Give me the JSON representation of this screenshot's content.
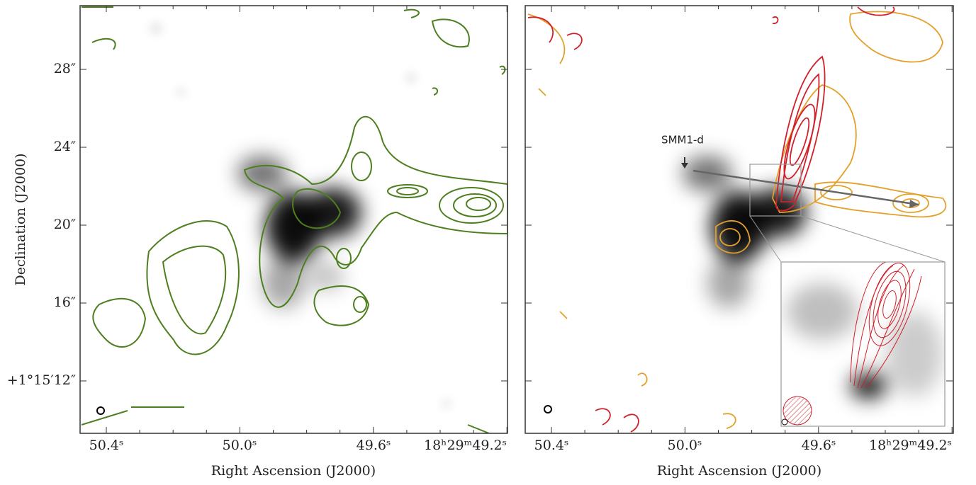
{
  "panels": [
    {
      "x_label": "Right Ascension (J2000)",
      "y_label": "Declination (J2000)",
      "x_ticks": [
        "50.4ˢ",
        "50.0ˢ",
        "49.6ˢ",
        "18ʰ29ᵐ49.2ˢ"
      ],
      "y_ticks": [
        "28″",
        "24″",
        "20″",
        "16″",
        "+1°15′12″"
      ]
    },
    {
      "x_label": "Right Ascension (J2000)",
      "x_ticks": [
        "50.4ˢ",
        "50.0ˢ",
        "49.6ˢ",
        "18ʰ29ᵐ49.2ˢ"
      ],
      "annotation": "SMM1-d"
    }
  ]
}
